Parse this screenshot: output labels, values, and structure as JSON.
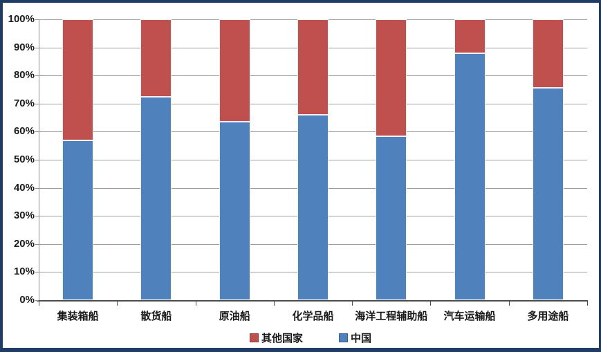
{
  "chart_data": {
    "type": "bar",
    "stacked": true,
    "percent_stacked": true,
    "title": "",
    "xlabel": "",
    "ylabel": "",
    "categories": [
      "集装箱船",
      "散货船",
      "原油船",
      "化学品船",
      "海洋工程辅助船",
      "汽车运输船",
      "多用途船"
    ],
    "series": [
      {
        "name": "中国",
        "color": "#4F81BD",
        "values": [
          57,
          72.5,
          63.5,
          66,
          58.5,
          88,
          75.5
        ]
      },
      {
        "name": "其他国家",
        "color": "#C0504D",
        "values": [
          43,
          27.5,
          36.5,
          34,
          41.5,
          12,
          24.5
        ]
      }
    ],
    "ylim": [
      0,
      100
    ],
    "ytick_step": 10,
    "ytick_labels": [
      "0%",
      "10%",
      "20%",
      "30%",
      "40%",
      "50%",
      "60%",
      "70%",
      "80%",
      "90%",
      "100%"
    ],
    "grid": true,
    "legend": {
      "position": "bottom-center",
      "items": [
        {
          "label": "其他国家",
          "color": "#C0504D"
        },
        {
          "label": "中国",
          "color": "#4F81BD"
        }
      ]
    }
  },
  "style": {
    "frame_border_color": "#1f3c66",
    "gridline_color": "#9c9c9c",
    "axis_color": "#4d4d4d",
    "text_color": "#1a1a1a",
    "background": "#ffffff"
  }
}
